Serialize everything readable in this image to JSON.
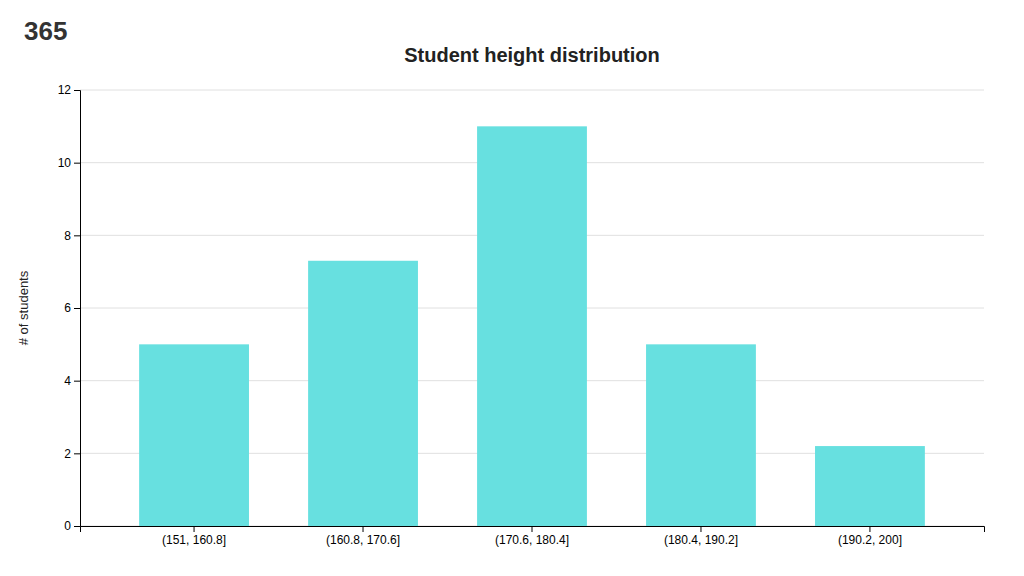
{
  "chart_data": {
    "type": "bar",
    "title": "Student height distribution",
    "ylabel": "# of students",
    "annotations": [
      "365"
    ],
    "categories": [
      "(151, 160.8]",
      "(160.8, 170.6]",
      "(170.6, 180.4]",
      "(180.4, 190.2]",
      "(190.2, 200]"
    ],
    "values": [
      5,
      7.3,
      11,
      5,
      2.2
    ],
    "color": "#67e0e0",
    "ylim": [
      0,
      12
    ],
    "yticks": [
      0,
      2,
      4,
      6,
      8,
      10,
      12
    ],
    "grid": true
  }
}
